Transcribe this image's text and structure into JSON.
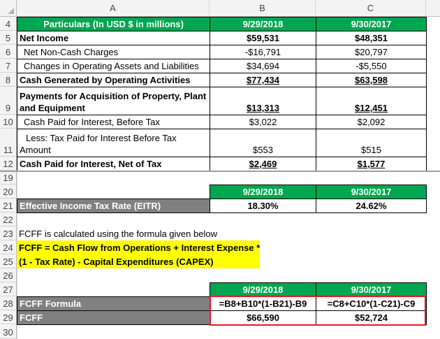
{
  "columns": [
    "A",
    "B",
    "C"
  ],
  "rows_visible": [
    "4",
    "5",
    "6",
    "7",
    "8",
    "9",
    "10",
    "11",
    "12",
    "19",
    "20",
    "21",
    "22",
    "23",
    "24",
    "25",
    "26",
    "27",
    "28",
    "29",
    "30"
  ],
  "header_row": {
    "particulars": "Particulars (In USD $ in millions)",
    "col_b": "9/29/2018",
    "col_c": "9/30/2017"
  },
  "net_income": {
    "label": "Net Income",
    "b": "$59,531",
    "c": "$48,351"
  },
  "non_cash": {
    "label": "Net Non-Cash Charges",
    "b": "-$16,791",
    "c": "$20,797"
  },
  "changes": {
    "label": "Changes in Operating Assets and Liabilities",
    "b": "$34,694",
    "c": "-$5,550"
  },
  "cfo": {
    "label": "Cash Generated by Operating Activities",
    "b": "$77,434",
    "c": "$63,598"
  },
  "capex": {
    "label": "Payments for Acquisition of Property, Plant and Equipment",
    "b": "$13,313",
    "c": "$12,451"
  },
  "interest_before": {
    "label": "Cash Paid for Interest, Before Tax",
    "b": "$3,022",
    "c": "$2,092"
  },
  "tax_paid": {
    "label": "Less: Tax Paid for Interest Before Tax Amount",
    "b": "$553",
    "c": "$515"
  },
  "interest_net": {
    "label": "Cash Paid for Interest, Net of Tax",
    "b": "$2,469",
    "c": "$1,577"
  },
  "eitr_header": {
    "b": "9/29/2018",
    "c": "9/30/2017"
  },
  "eitr": {
    "label": "Effective Income Tax Rate (EITR)",
    "b": "18.30%",
    "c": "24.62%"
  },
  "note": "FCFF is calculated using the formula given below",
  "formula_line1": "FCFF = Cash Flow from Operations + Interest Expense *",
  "formula_line2": "(1 - Tax Rate) - Capital Expenditures (CAPEX)",
  "fcff_header": {
    "b": "9/29/2018",
    "c": "9/30/2017"
  },
  "fcff_formula": {
    "label": "FCFF Formula",
    "b": "=B8+B10*(1-B21)-B9",
    "c": "=C8+C10*(1-C21)-C9"
  },
  "fcff": {
    "label": "FCFF",
    "b": "$66,590",
    "c": "$52,724"
  },
  "colors": {
    "green": "#00a650",
    "gray": "#808080",
    "yellow": "#ffff00",
    "highlight": "#e31b23"
  }
}
